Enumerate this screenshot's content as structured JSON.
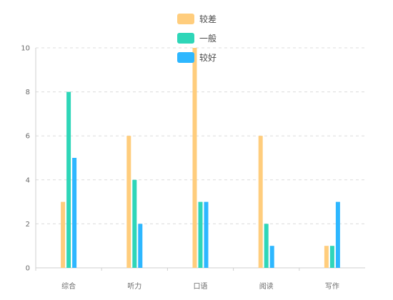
{
  "chart_data": {
    "type": "bar",
    "categories": [
      "综合",
      "听力",
      "口语",
      "阅读",
      "写作"
    ],
    "series": [
      {
        "name": "较差",
        "values": [
          3,
          6,
          10,
          6,
          1
        ],
        "color": "#FFCD7D"
      },
      {
        "name": "一般",
        "values": [
          8,
          4,
          3,
          2,
          1
        ],
        "color": "#2ED6B8"
      },
      {
        "name": "较好",
        "values": [
          5,
          2,
          3,
          1,
          3
        ],
        "color": "#2DB7FF"
      }
    ],
    "ylim": [
      0,
      10
    ],
    "yticks": [
      0,
      2,
      4,
      6,
      8,
      10
    ],
    "grid": true,
    "legend_position": "top-center",
    "title": "",
    "xlabel": "",
    "ylabel": ""
  }
}
